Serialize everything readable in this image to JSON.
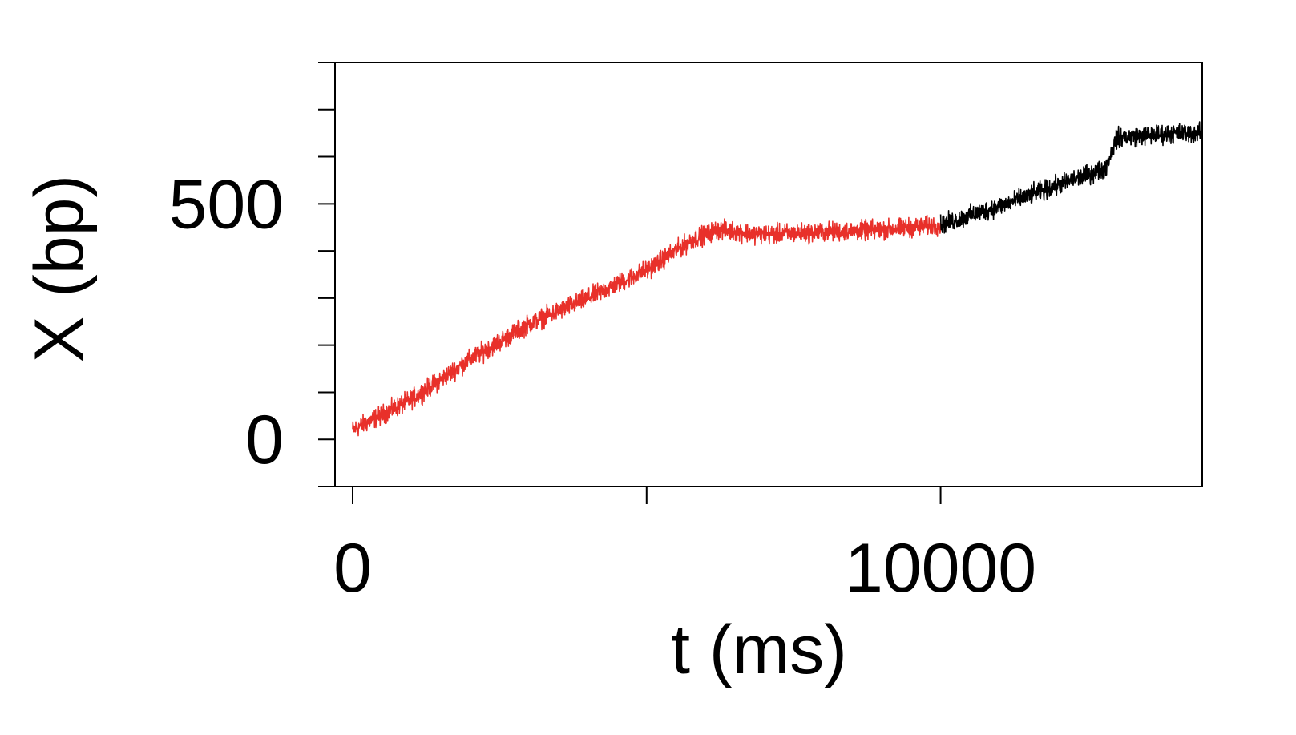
{
  "chart_data": {
    "type": "line",
    "title": "",
    "xlabel": "t (ms)",
    "ylabel": "X (bp)",
    "xlim": [
      -300,
      14450
    ],
    "ylim": [
      -100,
      800
    ],
    "x_ticks": [
      {
        "value": 0,
        "label": "0"
      },
      {
        "value": 5000,
        "label": ""
      },
      {
        "value": 10000,
        "label": "10000"
      }
    ],
    "y_ticks": [
      {
        "value": -100,
        "label": ""
      },
      {
        "value": 0,
        "label": "0"
      },
      {
        "value": 100,
        "label": ""
      },
      {
        "value": 200,
        "label": ""
      },
      {
        "value": 300,
        "label": ""
      },
      {
        "value": 400,
        "label": ""
      },
      {
        "value": 500,
        "label": "500"
      },
      {
        "value": 600,
        "label": ""
      },
      {
        "value": 700,
        "label": ""
      },
      {
        "value": 800,
        "label": ""
      }
    ],
    "grid": false,
    "noise_amplitude": 22,
    "series": [
      {
        "color": "#e8302a",
        "x": [
          0,
          1000,
          2000,
          3000,
          4000,
          5000,
          5800,
          6200,
          7000,
          8000,
          9000,
          10000
        ],
        "y": [
          20,
          85,
          170,
          245,
          300,
          360,
          425,
          445,
          435,
          440,
          445,
          455
        ]
      },
      {
        "color": "#000000",
        "x": [
          10000,
          11000,
          12000,
          12800,
          13000,
          14000,
          14450
        ],
        "y": [
          455,
          495,
          540,
          575,
          640,
          650,
          650
        ]
      }
    ]
  }
}
